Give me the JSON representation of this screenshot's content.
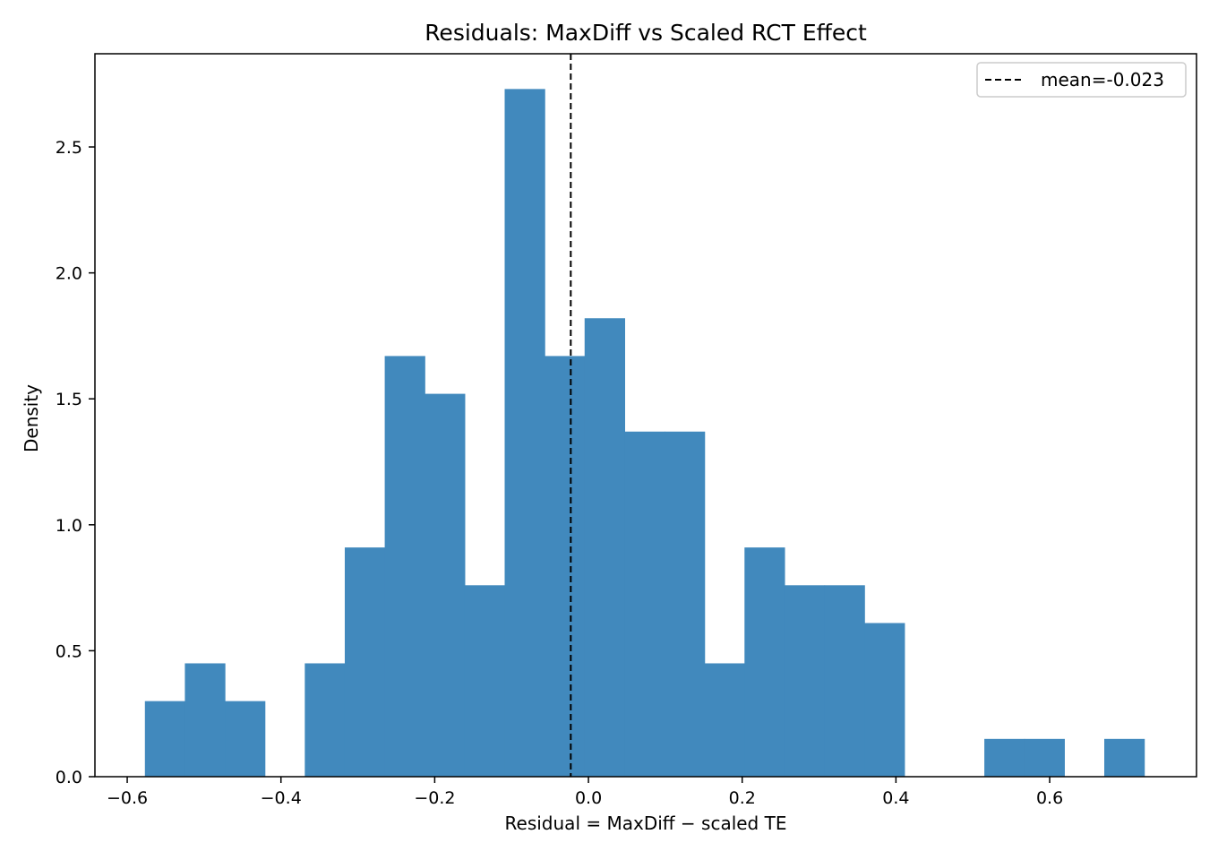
{
  "chart_data": {
    "type": "histogram",
    "title": "Residuals: MaxDiff vs Scaled RCT Effect",
    "xlabel": "Residual = MaxDiff − scaled TE",
    "ylabel": "Density",
    "xlim": [
      -0.642,
      0.791
    ],
    "ylim": [
      0,
      2.87
    ],
    "x_ticks": [
      -0.6,
      -0.4,
      -0.2,
      0.0,
      0.2,
      0.4,
      0.6
    ],
    "x_tick_labels": [
      "−0.6",
      "−0.4",
      "−0.2",
      "0.0",
      "0.2",
      "0.4",
      "0.6"
    ],
    "y_ticks": [
      0.0,
      0.5,
      1.0,
      1.5,
      2.0,
      2.5
    ],
    "y_tick_labels": [
      "0.0",
      "0.5",
      "1.0",
      "1.5",
      "2.0",
      "2.5"
    ],
    "bar_color": "#4189bd",
    "bin_edges": [
      -0.577,
      -0.525,
      -0.473,
      -0.421,
      -0.369,
      -0.317,
      -0.265,
      -0.213,
      -0.161,
      -0.109,
      -0.057,
      -0.005,
      0.047,
      0.099,
      0.151,
      0.203,
      0.255,
      0.307,
      0.359,
      0.411,
      0.463,
      0.515,
      0.567,
      0.619,
      0.671,
      0.723
    ],
    "densities": [
      0.3,
      0.45,
      0.3,
      0.0,
      0.45,
      0.91,
      1.67,
      1.52,
      0.76,
      2.73,
      1.67,
      1.82,
      1.37,
      1.37,
      0.45,
      0.91,
      0.76,
      0.76,
      0.61,
      0.0,
      0.0,
      0.15,
      0.15,
      0.0,
      0.15
    ],
    "mean_line": {
      "x": -0.023,
      "label": "mean=-0.023",
      "style": "dashed",
      "color": "#000000"
    },
    "legend_position": "top-right",
    "grid": false
  }
}
